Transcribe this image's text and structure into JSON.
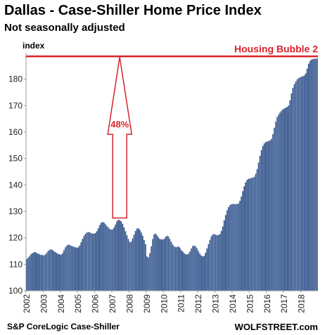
{
  "title": "Dallas - Case-Shiller Home Price Index",
  "subtitle": "Not seasonally adjusted",
  "ylabel": "index",
  "source": "S&P CoreLogic Case-Shiller",
  "credit": "WOLFSTREET.com",
  "colors": {
    "bar": "#2d4f86",
    "bar_edge": "#9fb3d4",
    "annotation": "#d8232a"
  },
  "chart_data": {
    "type": "bar",
    "frequency": "monthly",
    "start": "2002-01",
    "end": "2018-12",
    "ylim": [
      100,
      190
    ],
    "yticks": [
      100,
      110,
      120,
      130,
      140,
      150,
      160,
      170,
      180
    ],
    "xticks": [
      "2002",
      "2003",
      "2004",
      "2005",
      "2006",
      "2007",
      "2008",
      "2009",
      "2010",
      "2011",
      "2012",
      "2013",
      "2014",
      "2015",
      "2016",
      "2017",
      "2018"
    ],
    "grid": false,
    "annotations": {
      "bubble_label": "Housing Bubble 2",
      "bubble_level": 188.6,
      "arrow_label": "48%",
      "arrow_from": 127.5,
      "arrow_to": 188.6,
      "arrow_at": "2007-06"
    },
    "values": [
      112.0,
      112.5,
      113.1,
      113.8,
      114.2,
      114.5,
      114.6,
      114.3,
      114.0,
      113.8,
      113.5,
      113.6,
      113.3,
      113.7,
      114.4,
      115.1,
      115.5,
      115.6,
      115.4,
      115.0,
      114.6,
      114.2,
      113.9,
      113.8,
      113.6,
      114.2,
      115.3,
      116.4,
      117.1,
      117.4,
      117.3,
      117.0,
      116.8,
      116.6,
      116.4,
      116.3,
      116.4,
      117.1,
      118.3,
      119.6,
      120.7,
      121.5,
      122.0,
      122.2,
      122.1,
      121.8,
      121.6,
      121.6,
      121.8,
      122.5,
      123.6,
      124.8,
      125.7,
      126.0,
      125.8,
      125.2,
      124.5,
      123.9,
      123.4,
      123.1,
      123.2,
      123.9,
      125.0,
      126.2,
      126.8,
      126.7,
      126.2,
      125.3,
      124.0,
      122.5,
      121.0,
      119.6,
      118.4,
      118.6,
      119.8,
      121.2,
      122.6,
      123.5,
      123.6,
      123.0,
      122.0,
      120.8,
      119.2,
      117.6,
      113.0,
      112.6,
      114.2,
      116.8,
      119.6,
      121.3,
      121.6,
      121.0,
      120.2,
      119.6,
      119.4,
      119.4,
      119.6,
      120.3,
      120.8,
      120.5,
      119.6,
      118.5,
      117.5,
      116.8,
      116.5,
      116.5,
      116.8,
      116.3,
      115.3,
      114.8,
      114.2,
      113.8,
      113.7,
      114.0,
      114.8,
      116.0,
      116.9,
      117.1,
      116.8,
      116.0,
      115.0,
      114.0,
      113.3,
      113.0,
      113.2,
      114.4,
      116.0,
      117.6,
      119.2,
      120.6,
      121.3,
      121.4,
      121.2,
      121.0,
      121.1,
      121.4,
      122.6,
      124.3,
      126.6,
      128.6,
      130.4,
      131.6,
      132.4,
      132.7,
      132.8,
      132.8,
      132.7,
      132.8,
      133.0,
      134.0,
      135.6,
      137.6,
      139.5,
      141.0,
      141.9,
      142.3,
      142.5,
      142.6,
      142.8,
      143.1,
      144.2,
      146.0,
      148.5,
      151.0,
      153.2,
      154.8,
      155.7,
      156.2,
      156.4,
      156.6,
      156.9,
      157.4,
      159.2,
      161.6,
      163.9,
      165.7,
      166.6,
      167.4,
      168.0,
      168.6,
      168.9,
      169.2,
      169.5,
      170.0,
      172.0,
      174.6,
      176.7,
      178.1,
      179.1,
      179.9,
      180.4,
      180.7,
      180.9,
      181.1,
      181.4,
      182.2,
      184.0,
      185.8,
      186.9,
      187.4,
      187.6,
      187.7,
      187.7,
      187.8
    ]
  }
}
